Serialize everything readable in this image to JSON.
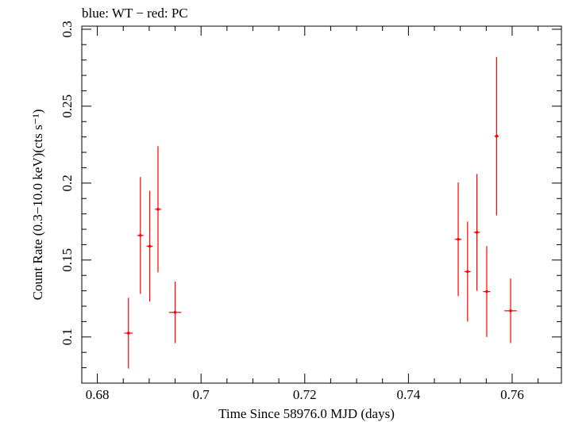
{
  "chart_data": {
    "type": "scatter",
    "title": "blue: WT − red: PC",
    "xlabel": "Time Since 58976.0 MJD (days)",
    "ylabel": "Count Rate (0.3−10.0 keV)(cts s⁻¹)",
    "xlim": [
      0.677,
      0.7695
    ],
    "ylim": [
      0.07,
      0.302
    ],
    "x_ticks": [
      0.68,
      0.7,
      0.72,
      0.74,
      0.76
    ],
    "x_tick_labels": [
      "0.68",
      "0.7",
      "0.72",
      "0.74",
      "0.76"
    ],
    "y_ticks": [
      0.1,
      0.15,
      0.2,
      0.25,
      0.3
    ],
    "y_tick_labels": [
      "0.1",
      "0.15",
      "0.2",
      "0.25",
      "0.3"
    ],
    "grid": false,
    "series": [
      {
        "color": "#ff0000",
        "points": [
          {
            "x": 0.686,
            "xerr": 0.0008,
            "y": 0.1025,
            "yerr": 0.023
          },
          {
            "x": 0.6883,
            "xerr": 0.0006,
            "y": 0.166,
            "yerr": 0.038
          },
          {
            "x": 0.6901,
            "xerr": 0.0006,
            "y": 0.159,
            "yerr": 0.036
          },
          {
            "x": 0.6917,
            "xerr": 0.0006,
            "y": 0.183,
            "yerr": 0.041
          },
          {
            "x": 0.695,
            "xerr": 0.0012,
            "y": 0.116,
            "yerr": 0.02
          },
          {
            "x": 0.7496,
            "xerr": 0.0006,
            "y": 0.1635,
            "yerr": 0.037
          },
          {
            "x": 0.7514,
            "xerr": 0.0006,
            "y": 0.1425,
            "yerr": 0.0325
          },
          {
            "x": 0.7532,
            "xerr": 0.0006,
            "y": 0.168,
            "yerr": 0.038
          },
          {
            "x": 0.7551,
            "xerr": 0.0007,
            "y": 0.1295,
            "yerr": 0.0295
          },
          {
            "x": 0.757,
            "xerr": 0.0004,
            "y": 0.2305,
            "yerr": 0.0515
          },
          {
            "x": 0.7597,
            "xerr": 0.0012,
            "y": 0.117,
            "yerr": 0.021
          }
        ]
      }
    ]
  }
}
